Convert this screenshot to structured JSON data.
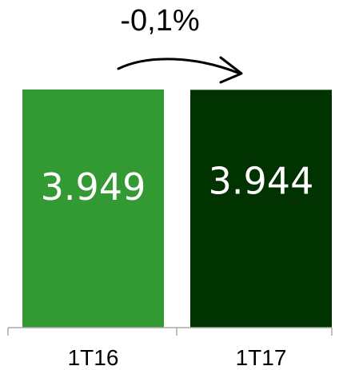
{
  "chart_data": {
    "type": "bar",
    "categories": [
      "1T16",
      "1T17"
    ],
    "values": [
      3949,
      3944
    ],
    "value_labels": [
      "3.949",
      "3.944"
    ],
    "bar_colors": [
      "#339933",
      "#003300"
    ],
    "value_label_color": "#ffffff",
    "annotation": "-0,1%",
    "annotation_arrow": "right-arrow-icon",
    "axis_color": "#aaaaaa",
    "title": "",
    "xlabel": "",
    "ylabel": "",
    "ylim": [
      0,
      3949
    ],
    "grid": false,
    "legend": "none"
  }
}
